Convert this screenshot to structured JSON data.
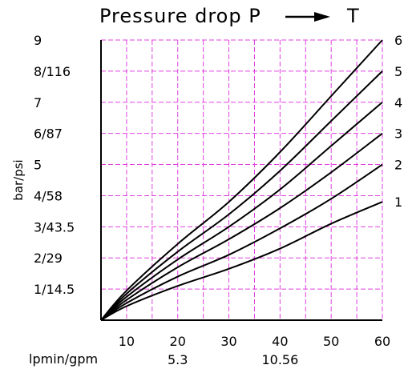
{
  "chart_data": {
    "type": "line",
    "title": "Pressure drop P → T",
    "title_parts": {
      "text": "Pressure drop P",
      "end": "T"
    },
    "ylabel": "bar/psi",
    "xlabel": "lpmin/gpm",
    "xlim": [
      5,
      60
    ],
    "ylim": [
      0,
      9
    ],
    "grid": true,
    "grid_color": "#e040e0",
    "line_color": "#000000",
    "x_ticks": [
      {
        "value": 10,
        "label": "10"
      },
      {
        "value": 20,
        "label": "20"
      },
      {
        "value": 30,
        "label": "30"
      },
      {
        "value": 40,
        "label": "40"
      },
      {
        "value": 50,
        "label": "50"
      },
      {
        "value": 60,
        "label": "60"
      }
    ],
    "x_secondary_ticks": [
      {
        "value": 20,
        "label": "5.3"
      },
      {
        "value": 40,
        "label": "10.56"
      }
    ],
    "y_ticks": [
      {
        "value": 9,
        "label": "9"
      },
      {
        "value": 8,
        "label": "8/116"
      },
      {
        "value": 7,
        "label": "7"
      },
      {
        "value": 6,
        "label": "6/87"
      },
      {
        "value": 5,
        "label": "5"
      },
      {
        "value": 4,
        "label": "4/58"
      },
      {
        "value": 3,
        "label": "3/43.5"
      },
      {
        "value": 2,
        "label": "2/29"
      },
      {
        "value": 1,
        "label": "1/14.5"
      }
    ],
    "series": [
      {
        "name": "1",
        "x": [
          5,
          10,
          20,
          30,
          40,
          50,
          60
        ],
        "y": [
          0,
          0.45,
          1.1,
          1.65,
          2.3,
          3.1,
          3.8
        ]
      },
      {
        "name": "2",
        "x": [
          5,
          10,
          20,
          30,
          40,
          50,
          60
        ],
        "y": [
          0,
          0.55,
          1.4,
          2.1,
          2.95,
          3.9,
          5.0
        ]
      },
      {
        "name": "3",
        "x": [
          5,
          10,
          20,
          30,
          40,
          50,
          60
        ],
        "y": [
          0,
          0.65,
          1.7,
          2.6,
          3.6,
          4.75,
          6.0
        ]
      },
      {
        "name": "4",
        "x": [
          5,
          10,
          20,
          30,
          40,
          50,
          60
        ],
        "y": [
          0,
          0.75,
          1.95,
          3.0,
          4.2,
          5.6,
          7.0
        ]
      },
      {
        "name": "5",
        "x": [
          5,
          10,
          20,
          30,
          40,
          50,
          60
        ],
        "y": [
          0,
          0.85,
          2.2,
          3.4,
          4.8,
          6.4,
          8.0
        ]
      },
      {
        "name": "6",
        "x": [
          5,
          10,
          20,
          30,
          40,
          50,
          60
        ],
        "y": [
          0,
          0.95,
          2.45,
          3.8,
          5.4,
          7.2,
          9.0
        ]
      }
    ]
  }
}
